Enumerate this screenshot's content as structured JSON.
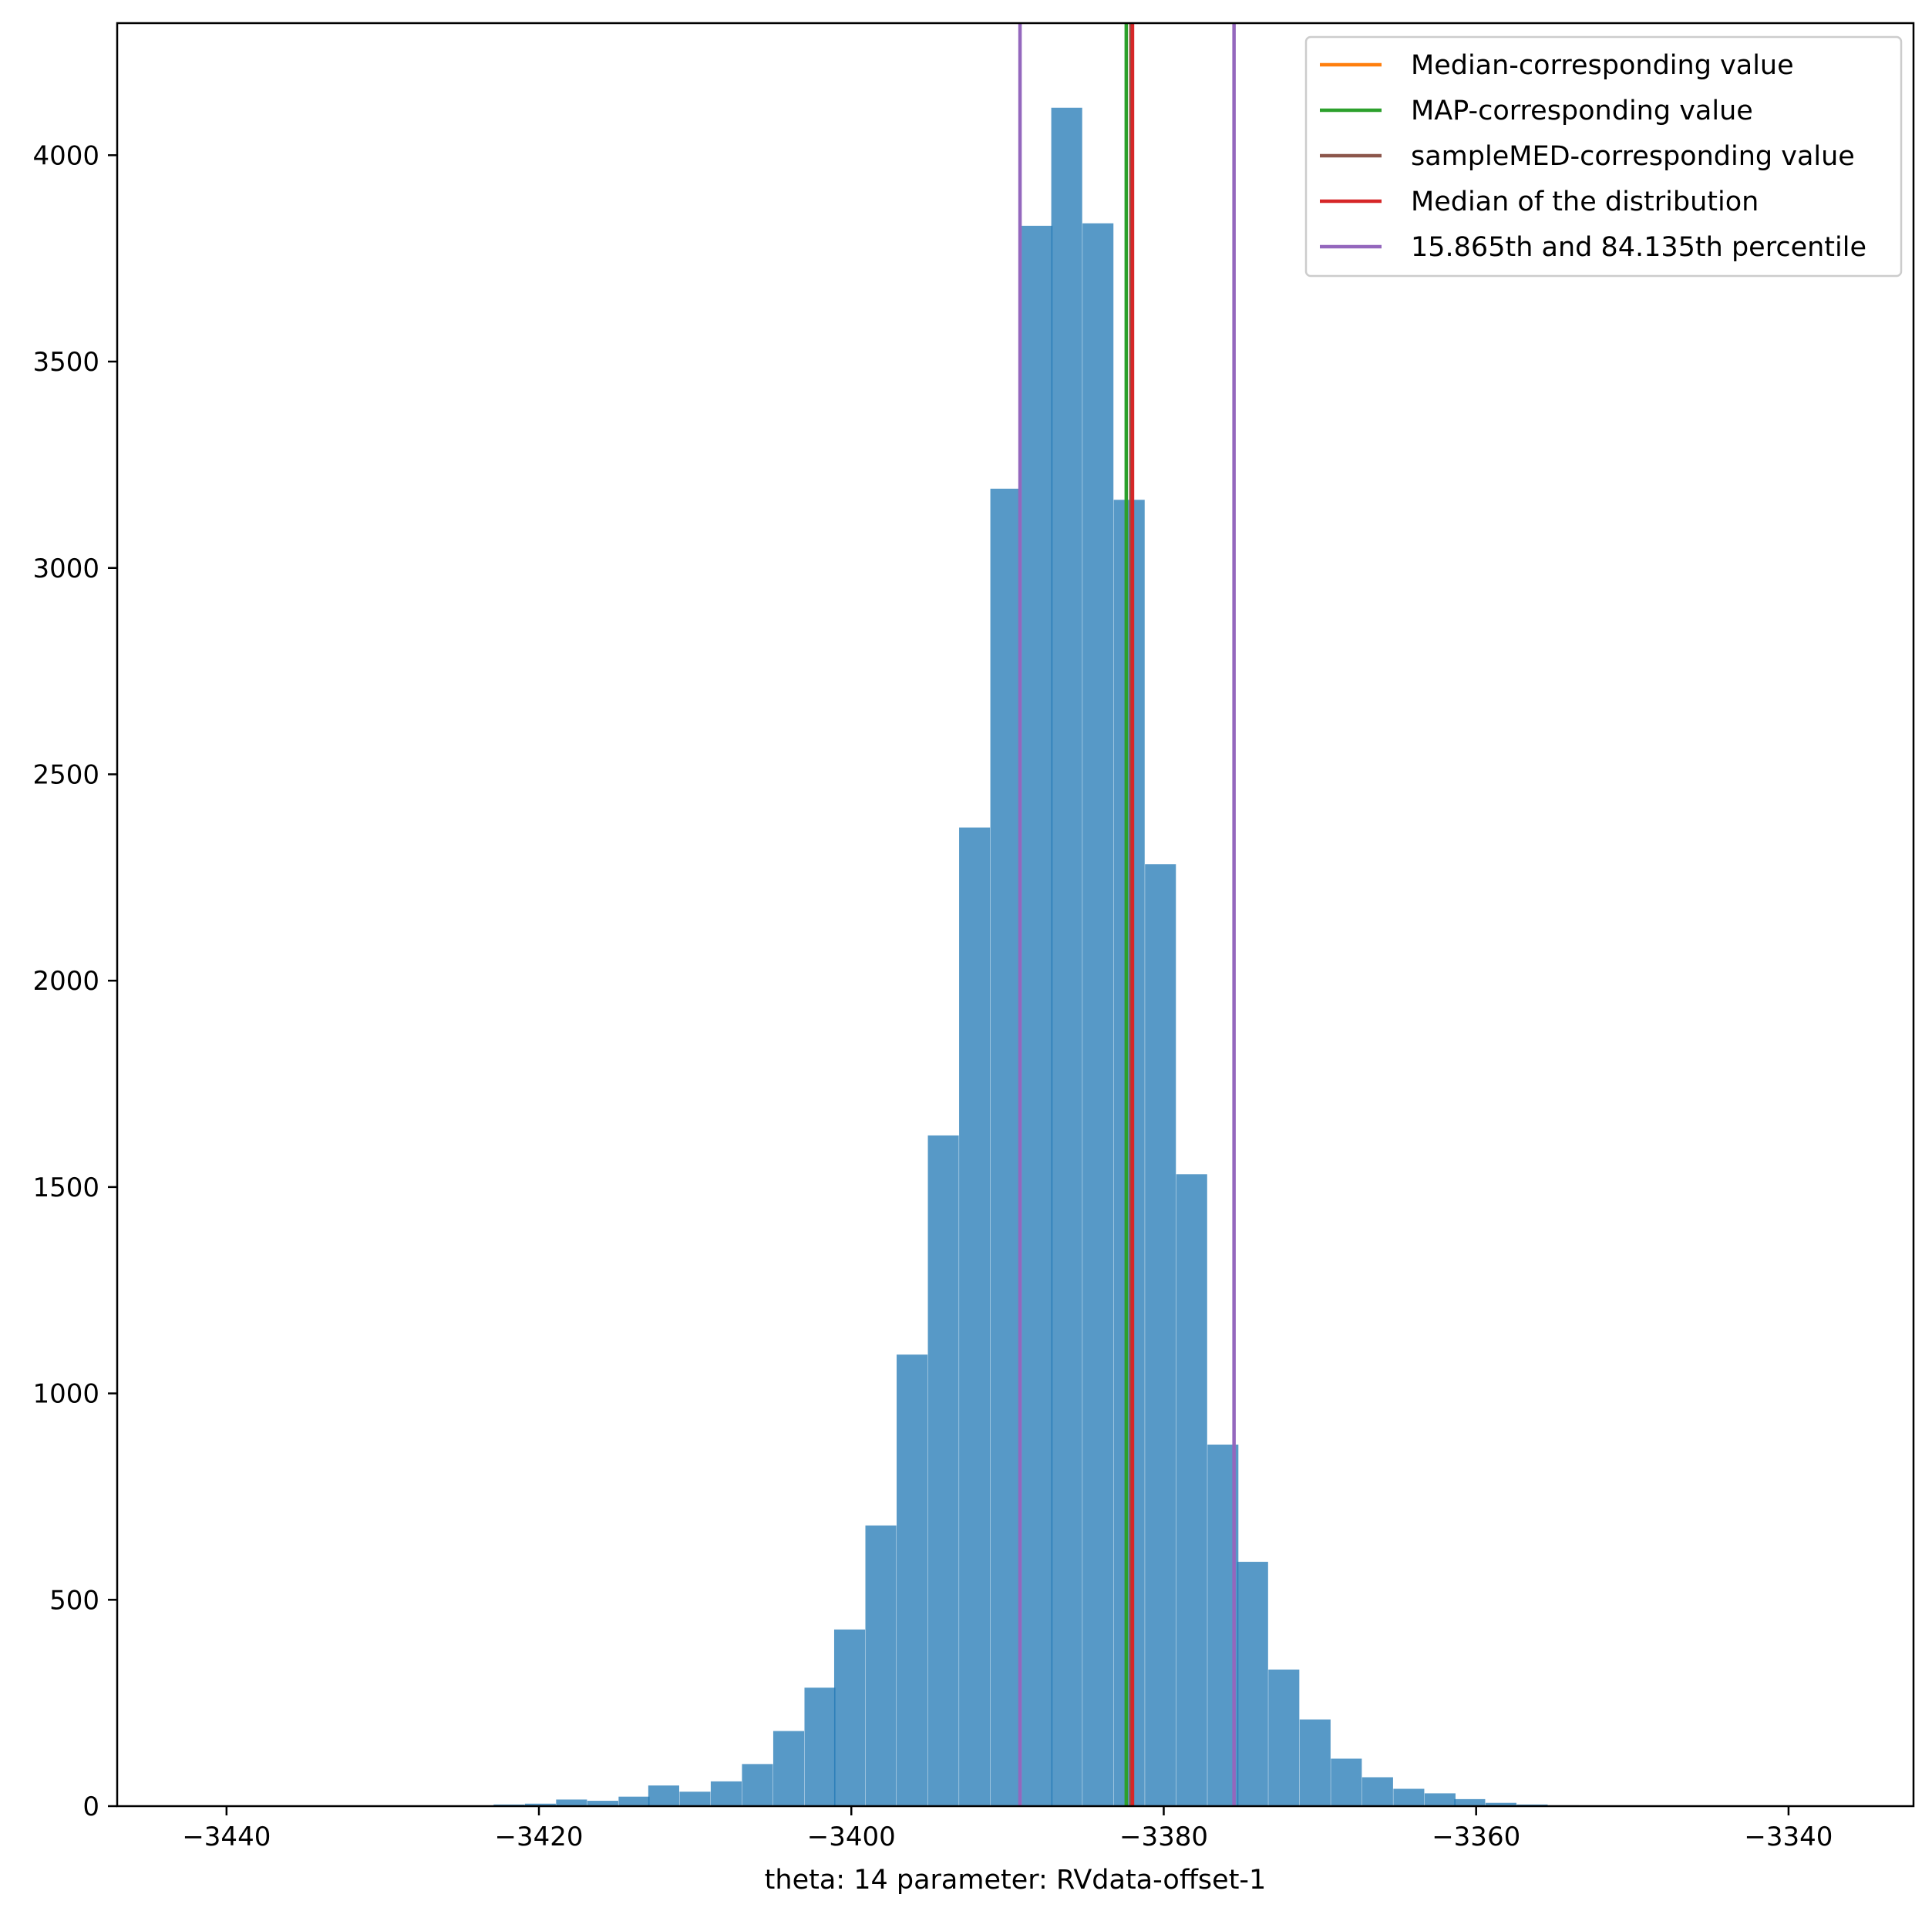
{
  "chart_data": {
    "type": "bar",
    "subtype": "histogram",
    "xlabel": "theta: 14 parameter: RVdata-offset-1",
    "ylabel": "",
    "xlim": [
      -3447.0,
      -3332.0
    ],
    "ylim": [
      0,
      4320
    ],
    "x_ticks": [
      -3440,
      -3420,
      -3400,
      -3380,
      -3360,
      -3340
    ],
    "y_ticks": [
      0,
      500,
      1000,
      1500,
      2000,
      2500,
      3000,
      3500,
      4000
    ],
    "x_tick_labels": [
      "−3440",
      "−3420",
      "−3400",
      "−3380",
      "−3360",
      "−3340"
    ],
    "y_tick_labels": [
      "0",
      "500",
      "1000",
      "1500",
      "2000",
      "2500",
      "3000",
      "3500",
      "4000"
    ],
    "bar_color": "#1f77b4",
    "bar_alpha": 0.75,
    "bin_width": 1.98,
    "bins": [
      {
        "left": -3442.7,
        "value": 1
      },
      {
        "left": -3422.9,
        "value": 4
      },
      {
        "left": -3420.9,
        "value": 6
      },
      {
        "left": -3418.9,
        "value": 16
      },
      {
        "left": -3416.9,
        "value": 13
      },
      {
        "left": -3414.9,
        "value": 23
      },
      {
        "left": -3413.0,
        "value": 50
      },
      {
        "left": -3411.0,
        "value": 35
      },
      {
        "left": -3409.0,
        "value": 60
      },
      {
        "left": -3407.0,
        "value": 102
      },
      {
        "left": -3405.0,
        "value": 182
      },
      {
        "left": -3403.0,
        "value": 287
      },
      {
        "left": -3401.1,
        "value": 428
      },
      {
        "left": -3399.1,
        "value": 680
      },
      {
        "left": -3397.1,
        "value": 1094
      },
      {
        "left": -3395.1,
        "value": 1625
      },
      {
        "left": -3393.1,
        "value": 2371
      },
      {
        "left": -3391.1,
        "value": 3192
      },
      {
        "left": -3389.1,
        "value": 3829
      },
      {
        "left": -3387.2,
        "value": 4115
      },
      {
        "left": -3385.2,
        "value": 3835
      },
      {
        "left": -3383.2,
        "value": 3165
      },
      {
        "left": -3381.2,
        "value": 2282
      },
      {
        "left": -3379.2,
        "value": 1531
      },
      {
        "left": -3377.2,
        "value": 876
      },
      {
        "left": -3375.3,
        "value": 592
      },
      {
        "left": -3373.3,
        "value": 331
      },
      {
        "left": -3371.3,
        "value": 210
      },
      {
        "left": -3369.3,
        "value": 115
      },
      {
        "left": -3367.3,
        "value": 70
      },
      {
        "left": -3365.3,
        "value": 42
      },
      {
        "left": -3363.3,
        "value": 31
      },
      {
        "left": -3361.4,
        "value": 17
      },
      {
        "left": -3359.4,
        "value": 8
      },
      {
        "left": -3357.4,
        "value": 4
      },
      {
        "left": -3355.4,
        "value": 2
      },
      {
        "left": -3353.4,
        "value": 1
      }
    ],
    "vlines": [
      {
        "name": "Median-corresponding value",
        "x": -3382.1,
        "color": "#ff7f0e"
      },
      {
        "name": "MAP-corresponding value",
        "x": -3382.4,
        "color": "#2ca02c"
      },
      {
        "name": "sampleMED-corresponding value",
        "x": -3382.1,
        "color": "#8c564b"
      },
      {
        "name": "Median of the distribution",
        "x": -3382.0,
        "color": "#d62728"
      },
      {
        "name": "15.865th and 84.135th percentile",
        "x": -3389.2,
        "color": "#9467bd"
      },
      {
        "name": "",
        "x": -3375.5,
        "color": "#9467bd"
      }
    ],
    "legend": {
      "placement": "top-right",
      "entries": [
        {
          "label": "Median-corresponding value",
          "color": "#ff7f0e"
        },
        {
          "label": "MAP-corresponding value",
          "color": "#2ca02c"
        },
        {
          "label": "sampleMED-corresponding value",
          "color": "#8c564b"
        },
        {
          "label": "Median of the distribution",
          "color": "#d62728"
        },
        {
          "label": "15.865th and 84.135th percentile",
          "color": "#9467bd"
        }
      ]
    },
    "grid": false
  }
}
